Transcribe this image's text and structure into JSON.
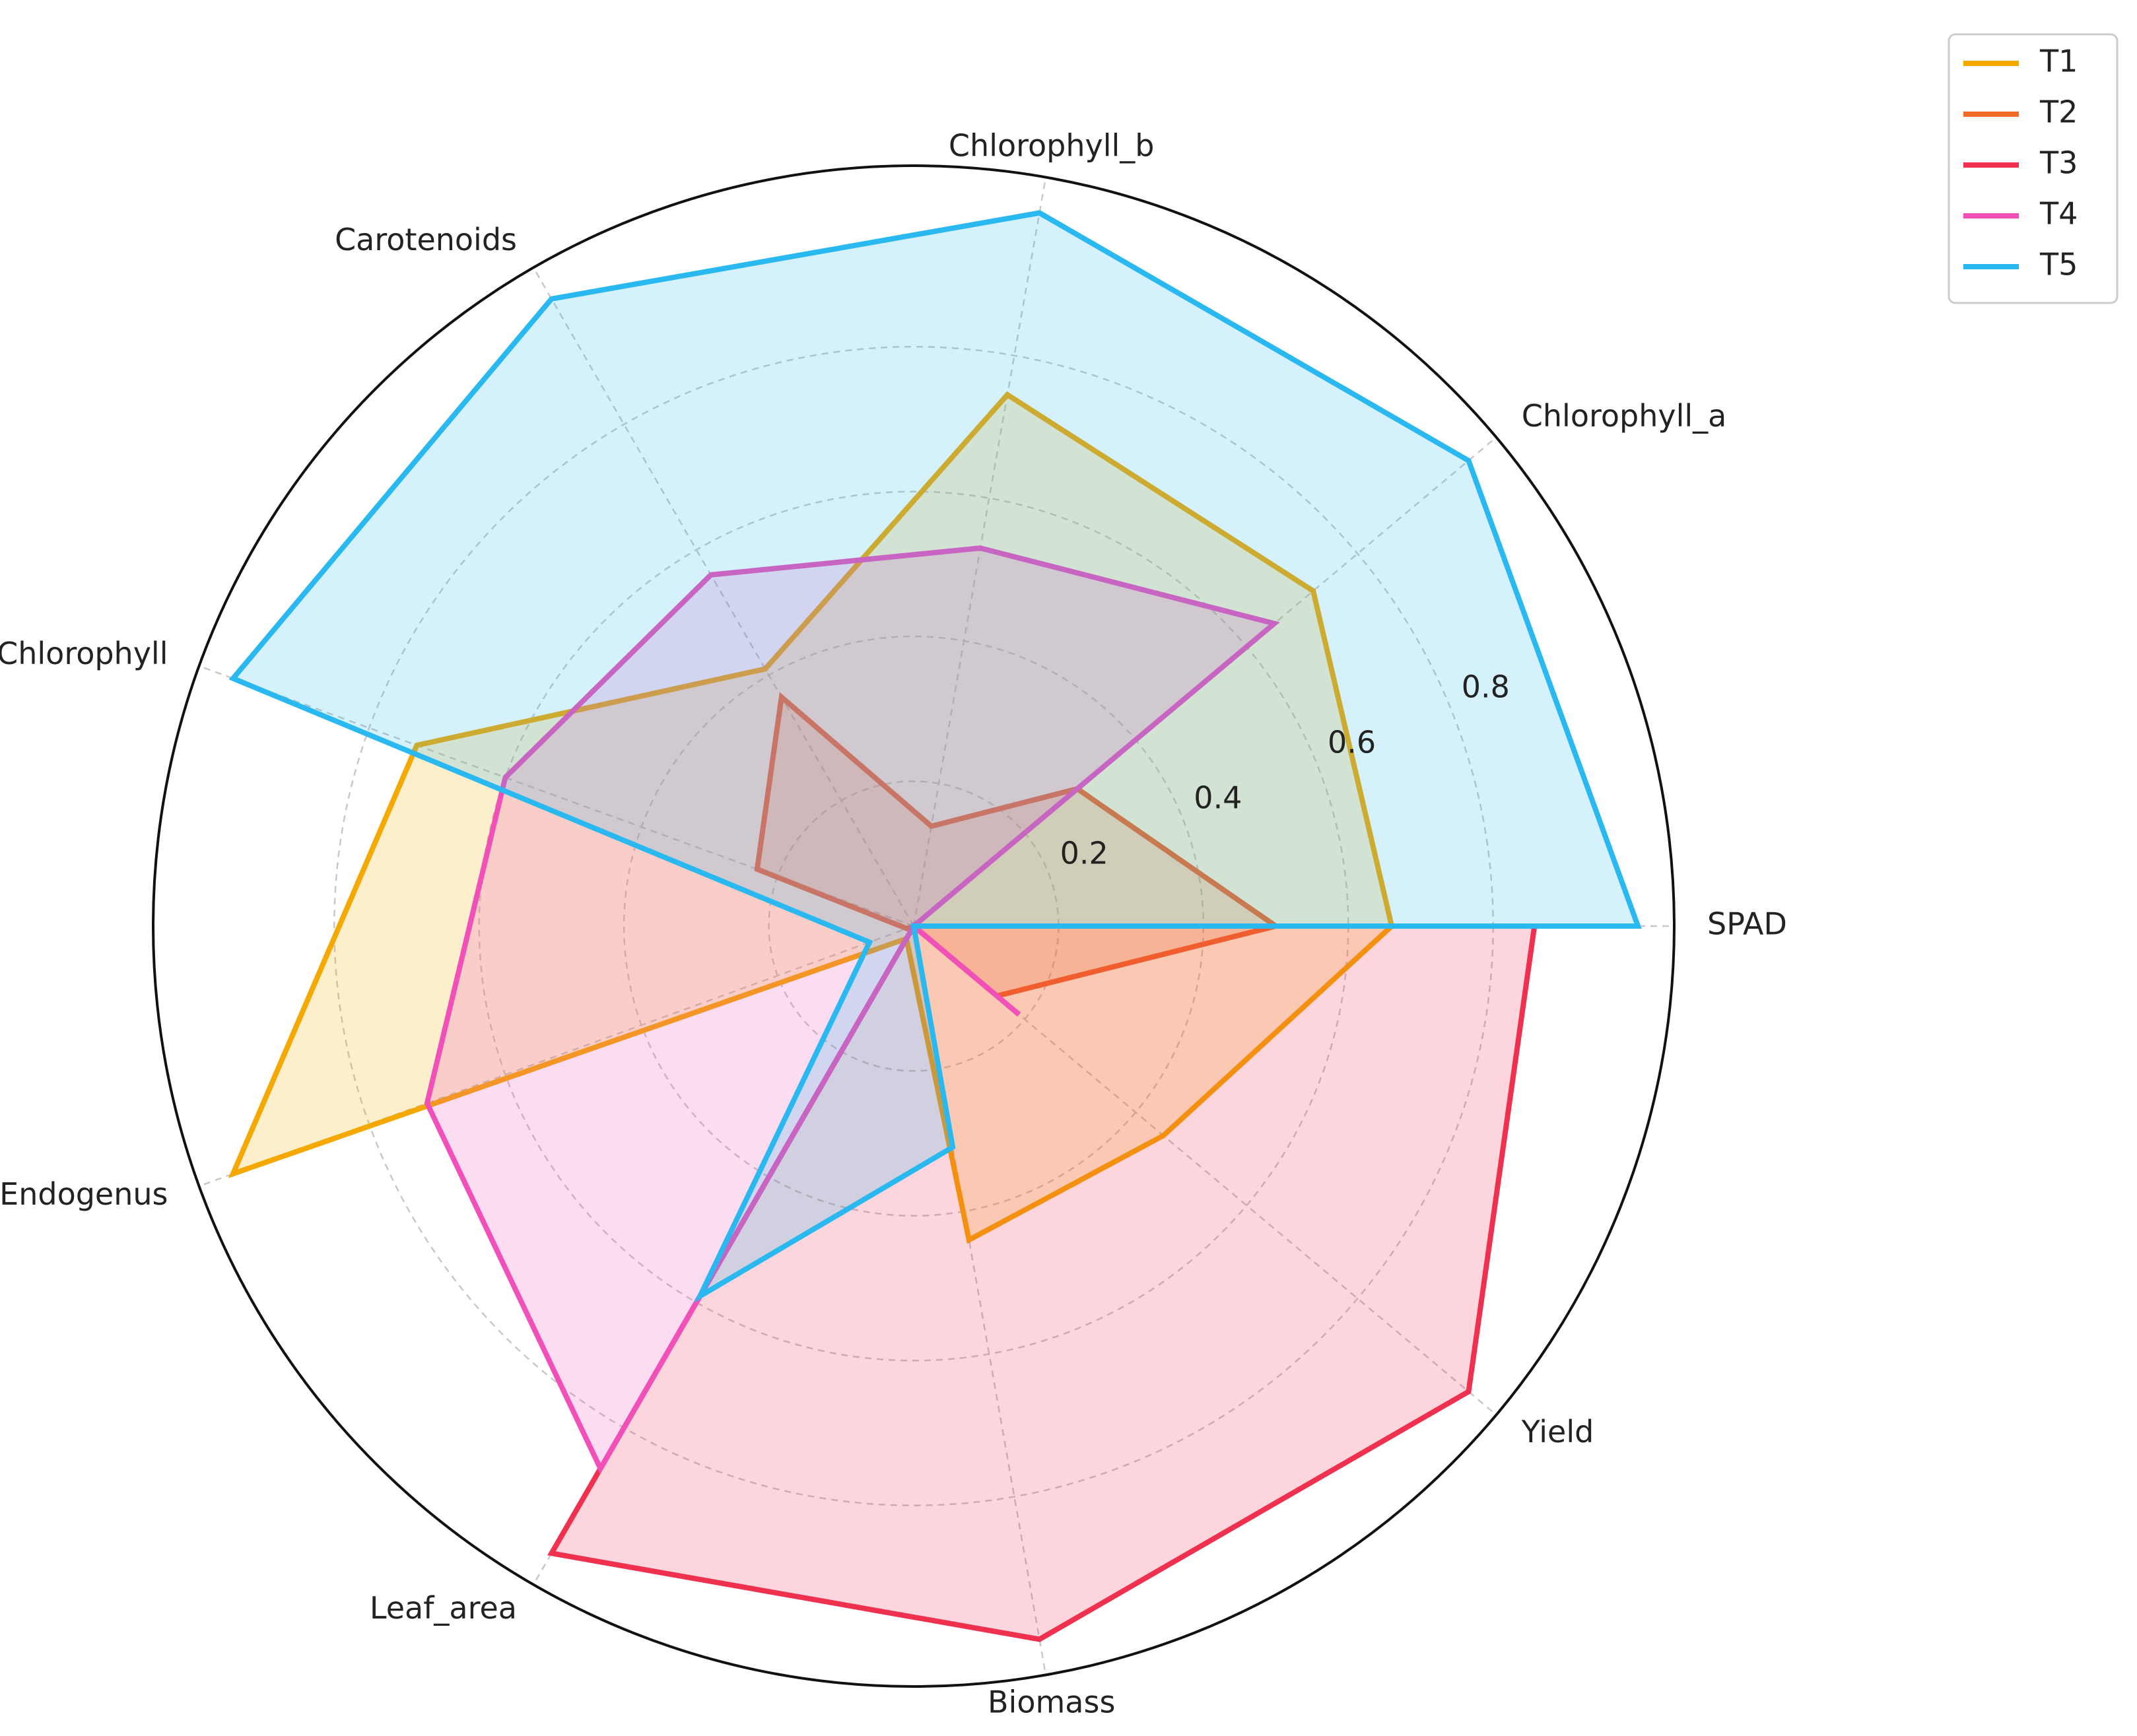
{
  "chart_data": {
    "type": "radar",
    "categories": [
      "SPAD",
      "Chlorophyll_a",
      "Chlorophyll_b",
      "Carotenoids",
      "Total_Chlorophyll",
      "NR_Endogenus",
      "Leaf_area",
      "Biomass",
      "Yield"
    ],
    "series": [
      {
        "name": "T1",
        "color": "#f5a800",
        "values": [
          0.66,
          0.72,
          0.745,
          0.41,
          0.73,
          1.0,
          0.02,
          0.44,
          0.45
        ]
      },
      {
        "name": "T2",
        "color": "#f06a28",
        "values": [
          0.5,
          0.295,
          0.14,
          0.365,
          0.23,
          0.01,
          0.0,
          0.0,
          0.15
        ]
      },
      {
        "name": "T3",
        "color": "#f0304f",
        "values": [
          0.857,
          0.0,
          0.0,
          0.0,
          0.0,
          0.0,
          1.0,
          1.0,
          1.0
        ]
      },
      {
        "name": "T4",
        "color": "#f050b8",
        "values": [
          0.0,
          0.65,
          0.53,
          0.56,
          0.6,
          0.715,
          0.865,
          0.0,
          0.19
        ]
      },
      {
        "name": "T5",
        "color": "#2ab8f0",
        "values": [
          1.0,
          1.0,
          1.0,
          1.0,
          1.0,
          0.065,
          0.59,
          0.31,
          0.0
        ]
      }
    ],
    "ylim": [
      0,
      1.05
    ],
    "yticks": [
      0.2,
      0.4,
      0.6,
      0.8
    ],
    "grid": true,
    "legend": "upper right"
  }
}
